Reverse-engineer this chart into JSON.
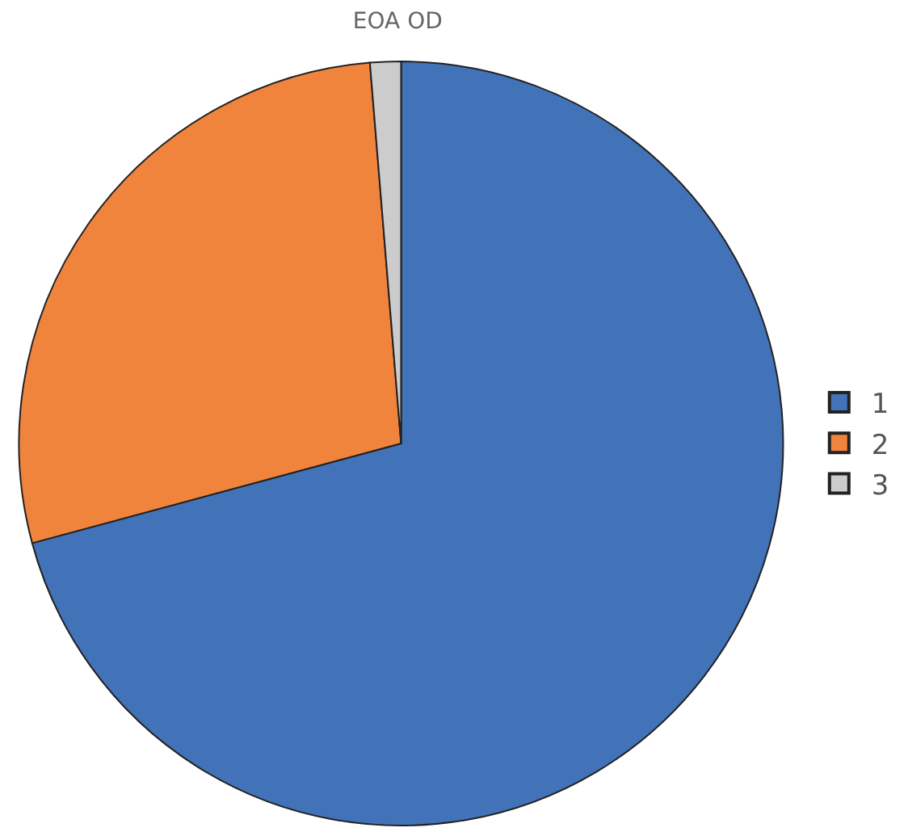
{
  "chart_data": {
    "type": "pie",
    "title": "EOA OD",
    "categories": [
      "1",
      "2",
      "3"
    ],
    "values": [
      70.8,
      27.9,
      1.3
    ],
    "colors": [
      "#4272b8",
      "#f0843c",
      "#cccccc"
    ],
    "legend": "right"
  }
}
